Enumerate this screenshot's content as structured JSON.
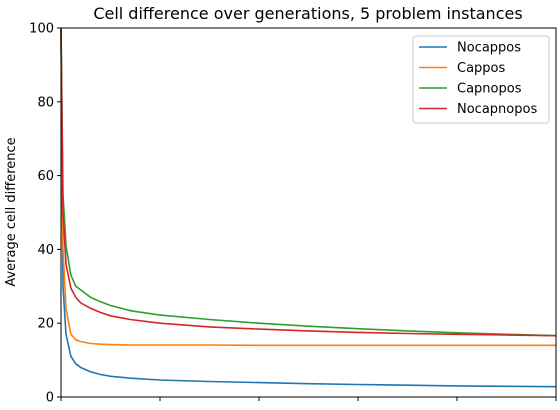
{
  "chart_data": {
    "type": "line",
    "title": "Cell difference over generations, 5 problem instances",
    "xlabel": "",
    "ylabel": "Average cell difference",
    "xlim": [
      0,
      5000
    ],
    "ylim": [
      0,
      100
    ],
    "xticks": [
      0,
      1000,
      2000,
      3000,
      4000,
      5000
    ],
    "yticks": [
      0,
      20,
      40,
      60,
      80,
      100
    ],
    "ytick_labels": [
      "0",
      "20",
      "40",
      "60",
      "80",
      "100"
    ],
    "grid": false,
    "legend_position": "top-right",
    "x": [
      0,
      20,
      50,
      100,
      150,
      200,
      300,
      400,
      500,
      700,
      1000,
      1500,
      2000,
      2500,
      3000,
      3500,
      4000,
      4500,
      5000
    ],
    "series": [
      {
        "name": "Nocappos",
        "color": "#1f77b4",
        "values": [
          100,
          30,
          17,
          11,
          9,
          8,
          6.8,
          6.1,
          5.6,
          5.1,
          4.6,
          4.2,
          3.9,
          3.6,
          3.4,
          3.2,
          3.0,
          2.9,
          2.8
        ]
      },
      {
        "name": "Cappos",
        "color": "#ff7f0e",
        "values": [
          100,
          40,
          24,
          17,
          15.5,
          15,
          14.5,
          14.3,
          14.2,
          14.1,
          14.1,
          14.1,
          14.0,
          14.0,
          14.0,
          14.0,
          14.0,
          14.0,
          14.0
        ]
      },
      {
        "name": "Capnopos",
        "color": "#2ca02c",
        "values": [
          100,
          55,
          41,
          33,
          30,
          29,
          27,
          25.8,
          24.8,
          23.4,
          22.2,
          21.0,
          20.0,
          19.2,
          18.5,
          17.9,
          17.4,
          17.0,
          16.6
        ]
      },
      {
        "name": "Nocapnopos",
        "color": "#d62728",
        "values": [
          100,
          50,
          36,
          29.5,
          27,
          25.5,
          24,
          22.9,
          22,
          21,
          20,
          19.0,
          18.4,
          17.9,
          17.5,
          17.2,
          17.0,
          16.8,
          16.6
        ]
      }
    ]
  }
}
